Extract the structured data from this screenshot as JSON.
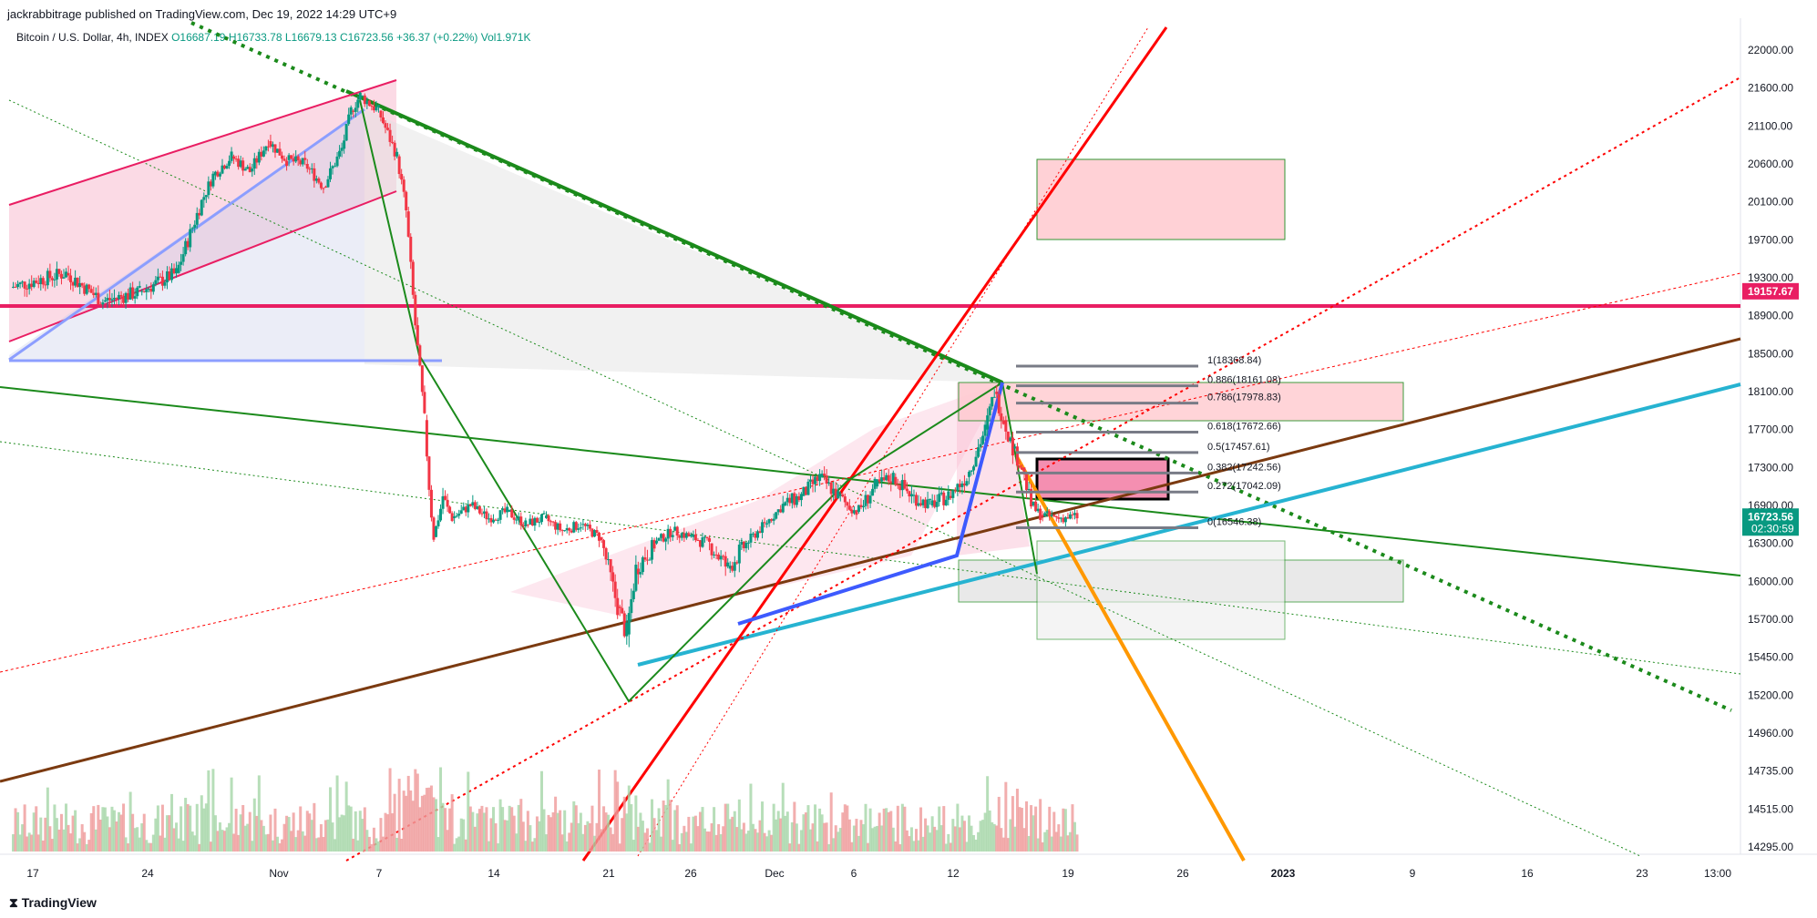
{
  "header": {
    "publisher": "jackrabbitrage published on TradingView.com, Dec 19, 2022 14:29 UTC+9"
  },
  "symbol": {
    "name": "Bitcoin / U.S. Dollar, 4h, INDEX",
    "open": "O16687.19",
    "high": "H16733.78",
    "low": "L16679.13",
    "close": "C16723.56",
    "change": "+36.37 (+0.22%)",
    "volume": "Vol1.971K"
  },
  "footer": {
    "logo": "TradingView"
  },
  "colors": {
    "up": "#089981",
    "down": "#f23645",
    "pink_line": "#e91e63",
    "green_line": "#1b8a1b",
    "red_line": "#ff0000",
    "brown_line": "#7b3a10",
    "cyan_line": "#26b3d1",
    "orange_line": "#ff9800",
    "blue_line": "#3d5afe",
    "gray_line": "#787b86"
  },
  "chart_data": {
    "type": "candlestick",
    "title": "",
    "y_ticks": [
      "22000.00",
      "21600.00",
      "21100.00",
      "20600.00",
      "20100.00",
      "19700.00",
      "19300.00",
      "18900.00",
      "18500.00",
      "18100.00",
      "17700.00",
      "17300.00",
      "16900.00",
      "16300.00",
      "16000.00",
      "15700.00",
      "15450.00",
      "15200.00",
      "14960.00",
      "14735.00",
      "14515.00",
      "14295.00"
    ],
    "x_ticks": [
      "17",
      "24",
      "Nov",
      "7",
      "14",
      "21",
      "26",
      "Dec",
      "6",
      "12",
      "19",
      "26",
      "2023",
      "9",
      "16",
      "23",
      "13:00"
    ],
    "price_badges": [
      {
        "label": "19157.67",
        "value": 19157.67,
        "color": "#e91e63"
      },
      {
        "label": "16723.56",
        "sub": "02:30:59",
        "value": 16723.56,
        "color": "#089981"
      }
    ],
    "fib_levels": [
      {
        "label": "1(18368.84)",
        "value": 18368.84
      },
      {
        "label": "0.886(18161.08)",
        "value": 18161.08
      },
      {
        "label": "0.786(17978.83)",
        "value": 17978.83
      },
      {
        "label": "0.618(17672.66)",
        "value": 17672.66
      },
      {
        "label": "0.5(17457.61)",
        "value": 17457.61
      },
      {
        "label": "0.382(17242.56)",
        "value": 17242.56
      },
      {
        "label": "0.272(17042.09)",
        "value": 17042.09
      },
      {
        "label": "0(16546.38)",
        "value": 16546.38
      }
    ],
    "price_path": [
      [
        0,
        19200
      ],
      [
        6,
        19350
      ],
      [
        10,
        19050
      ],
      [
        14,
        19150
      ],
      [
        18,
        19350
      ],
      [
        22,
        20450
      ],
      [
        24,
        20700
      ],
      [
        26,
        20500
      ],
      [
        28,
        20900
      ],
      [
        30,
        20650
      ],
      [
        32,
        20600
      ],
      [
        34,
        20300
      ],
      [
        36,
        20800
      ],
      [
        37,
        21300
      ],
      [
        38,
        21500
      ],
      [
        40,
        21300
      ],
      [
        42,
        20700
      ],
      [
        43,
        20000
      ],
      [
        44,
        18800
      ],
      [
        45,
        17800
      ],
      [
        46,
        16400
      ],
      [
        47,
        17000
      ],
      [
        48,
        16700
      ],
      [
        50,
        16900
      ],
      [
        52,
        16700
      ],
      [
        54,
        16800
      ],
      [
        56,
        16600
      ],
      [
        58,
        16700
      ],
      [
        60,
        16500
      ],
      [
        62,
        16600
      ],
      [
        64,
        16400
      ],
      [
        66,
        15800
      ],
      [
        67,
        15600
      ],
      [
        68,
        16100
      ],
      [
        70,
        16300
      ],
      [
        72,
        16500
      ],
      [
        74,
        16400
      ],
      [
        76,
        16300
      ],
      [
        78,
        16100
      ],
      [
        80,
        16300
      ],
      [
        82,
        16600
      ],
      [
        84,
        16900
      ],
      [
        86,
        17000
      ],
      [
        88,
        17200
      ],
      [
        90,
        17000
      ],
      [
        92,
        16800
      ],
      [
        94,
        17100
      ],
      [
        96,
        17200
      ],
      [
        98,
        17000
      ],
      [
        100,
        16900
      ],
      [
        102,
        17000
      ],
      [
        104,
        17200
      ],
      [
        106,
        17700
      ],
      [
        107,
        18100
      ],
      [
        108,
        17800
      ],
      [
        109,
        17500
      ],
      [
        110,
        17300
      ],
      [
        111,
        16900
      ],
      [
        112,
        16750
      ],
      [
        114,
        16700
      ],
      [
        116,
        16723
      ]
    ]
  }
}
